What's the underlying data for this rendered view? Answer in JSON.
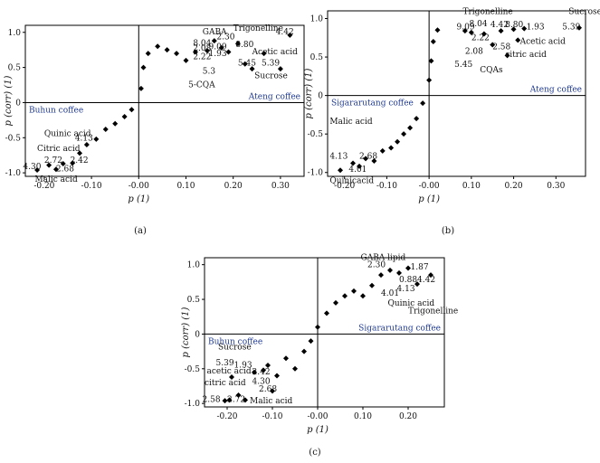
{
  "chart_data": [
    {
      "type": "scatter",
      "panel_label": "(a)",
      "xlabel": "p (1)",
      "ylabel": "p (corr) (1)",
      "xlim": [
        -0.24,
        0.35
      ],
      "ylim": [
        -1.05,
        1.1
      ],
      "xticks": [
        "-0.20",
        "-0.10",
        "-0.00",
        "0.10",
        "0.20",
        "0.30"
      ],
      "xtick_values": [
        -0.2,
        -0.1,
        0.0,
        0.1,
        0.2,
        0.3
      ],
      "yticks": [
        "1.0",
        "0.5",
        "0",
        "-0.5",
        "-1.0"
      ],
      "ytick_values": [
        1.0,
        0.5,
        0.0,
        -0.5,
        -1.0
      ],
      "quadrant_labels": {
        "left": "Buhun coffee",
        "right": "Ateng coffee"
      },
      "points": [
        [
          -0.215,
          -0.96
        ],
        [
          -0.19,
          -0.89
        ],
        [
          -0.175,
          -0.95
        ],
        [
          -0.16,
          -0.87
        ],
        [
          -0.14,
          -0.86
        ],
        [
          -0.125,
          -0.72
        ],
        [
          -0.11,
          -0.6
        ],
        [
          -0.09,
          -0.52
        ],
        [
          -0.07,
          -0.38
        ],
        [
          -0.05,
          -0.3
        ],
        [
          -0.03,
          -0.2
        ],
        [
          -0.015,
          -0.1
        ],
        [
          0.005,
          0.2
        ],
        [
          0.01,
          0.5
        ],
        [
          0.02,
          0.7
        ],
        [
          0.04,
          0.8
        ],
        [
          0.06,
          0.75
        ],
        [
          0.08,
          0.7
        ],
        [
          0.1,
          0.6
        ],
        [
          0.12,
          0.72
        ],
        [
          0.145,
          0.74
        ],
        [
          0.16,
          0.88
        ],
        [
          0.175,
          0.78
        ],
        [
          0.19,
          0.72
        ],
        [
          0.21,
          0.84
        ],
        [
          0.225,
          0.55
        ],
        [
          0.24,
          0.48
        ],
        [
          0.265,
          0.7
        ],
        [
          0.3,
          0.48
        ],
        [
          0.32,
          0.96
        ]
      ],
      "annotations": [
        {
          "text": "GABA",
          "x": 0.135,
          "y": 0.97
        },
        {
          "text": "Trigonelline",
          "x": 0.2,
          "y": 1.02
        },
        {
          "text": "2.30",
          "x": 0.165,
          "y": 0.9
        },
        {
          "text": "4.42",
          "x": 0.29,
          "y": 0.97
        },
        {
          "text": "8.04",
          "x": 0.115,
          "y": 0.81
        },
        {
          "text": "9.09",
          "x": 0.148,
          "y": 0.76
        },
        {
          "text": "8.80",
          "x": 0.205,
          "y": 0.79
        },
        {
          "text": "2.08",
          "x": 0.115,
          "y": 0.74
        },
        {
          "text": "1.93",
          "x": 0.148,
          "y": 0.66
        },
        {
          "text": "Acetic acid",
          "x": 0.24,
          "y": 0.69
        },
        {
          "text": "2.22",
          "x": 0.115,
          "y": 0.62
        },
        {
          "text": "5.45",
          "x": 0.21,
          "y": 0.53
        },
        {
          "text": "5.39",
          "x": 0.26,
          "y": 0.53
        },
        {
          "text": "5.3",
          "x": 0.135,
          "y": 0.41
        },
        {
          "text": "Sucrose",
          "x": 0.245,
          "y": 0.35
        },
        {
          "text": "5-CQA",
          "x": 0.105,
          "y": 0.22
        },
        {
          "text": "Quinic acid",
          "x": -0.2,
          "y": -0.48
        },
        {
          "text": "4.13",
          "x": -0.135,
          "y": -0.54
        },
        {
          "text": "Citric acid",
          "x": -0.215,
          "y": -0.69
        },
        {
          "text": "2.72",
          "x": -0.2,
          "y": -0.86
        },
        {
          "text": "2.42",
          "x": -0.145,
          "y": -0.86
        },
        {
          "text": "4.30",
          "x": -0.245,
          "y": -0.95
        },
        {
          "text": "2.68",
          "x": -0.175,
          "y": -0.98
        },
        {
          "text": "Malic acid",
          "x": -0.22,
          "y": -1.13
        }
      ]
    },
    {
      "type": "scatter",
      "panel_label": "(b)",
      "xlabel": "p (1)",
      "ylabel": "p (corr) (1)",
      "xlim": [
        -0.24,
        0.37
      ],
      "ylim": [
        -1.05,
        1.1
      ],
      "xticks": [
        "-0.20",
        "-0.10",
        "-0.00",
        "0.10",
        "0.20",
        "0.30"
      ],
      "xtick_values": [
        -0.2,
        -0.1,
        0.0,
        0.1,
        0.2,
        0.3
      ],
      "yticks": [
        "1.0",
        "0.5",
        "0",
        "-0.5",
        "-1.0"
      ],
      "ytick_values": [
        1.0,
        0.5,
        0.0,
        -0.5,
        -1.0
      ],
      "quadrant_labels": {
        "left": "Sigararutang coffee",
        "right": "Ateng coffee"
      },
      "points": [
        [
          -0.21,
          -0.97
        ],
        [
          -0.18,
          -0.88
        ],
        [
          -0.165,
          -0.92
        ],
        [
          -0.15,
          -0.82
        ],
        [
          -0.13,
          -0.85
        ],
        [
          -0.11,
          -0.72
        ],
        [
          -0.09,
          -0.68
        ],
        [
          -0.075,
          -0.6
        ],
        [
          -0.06,
          -0.5
        ],
        [
          -0.045,
          -0.42
        ],
        [
          -0.03,
          -0.3
        ],
        [
          -0.015,
          -0.1
        ],
        [
          0.0,
          0.2
        ],
        [
          0.005,
          0.45
        ],
        [
          0.01,
          0.7
        ],
        [
          0.02,
          0.85
        ],
        [
          0.085,
          0.84
        ],
        [
          0.1,
          0.82
        ],
        [
          0.13,
          0.8
        ],
        [
          0.15,
          0.66
        ],
        [
          0.17,
          0.84
        ],
        [
          0.185,
          0.52
        ],
        [
          0.2,
          0.86
        ],
        [
          0.21,
          0.72
        ],
        [
          0.225,
          0.87
        ],
        [
          0.355,
          0.88
        ]
      ],
      "annotations": [
        {
          "text": "Trigonelline",
          "x": 0.08,
          "y": 1.06
        },
        {
          "text": "Sucrose",
          "x": 0.33,
          "y": 1.06
        },
        {
          "text": "9.09",
          "x": 0.065,
          "y": 0.86
        },
        {
          "text": "8.04",
          "x": 0.095,
          "y": 0.9
        },
        {
          "text": "4.42",
          "x": 0.145,
          "y": 0.89
        },
        {
          "text": "8.80",
          "x": 0.18,
          "y": 0.89
        },
        {
          "text": "1.93",
          "x": 0.23,
          "y": 0.86
        },
        {
          "text": "5.39",
          "x": 0.315,
          "y": 0.86
        },
        {
          "text": "2.22",
          "x": 0.1,
          "y": 0.72
        },
        {
          "text": "2.58",
          "x": 0.15,
          "y": 0.6
        },
        {
          "text": "Acetic acid",
          "x": 0.215,
          "y": 0.67
        },
        {
          "text": "2.08",
          "x": 0.085,
          "y": 0.54
        },
        {
          "text": "citric acid",
          "x": 0.18,
          "y": 0.5
        },
        {
          "text": "5.45",
          "x": 0.06,
          "y": 0.37
        },
        {
          "text": "CQAs",
          "x": 0.12,
          "y": 0.3
        },
        {
          "text": "Malic acid",
          "x": -0.235,
          "y": -0.37
        },
        {
          "text": "4.13",
          "x": -0.235,
          "y": -0.82
        },
        {
          "text": "2.68",
          "x": -0.165,
          "y": -0.82
        },
        {
          "text": "4.01",
          "x": -0.19,
          "y": -0.99
        },
        {
          "text": "Quinicacid",
          "x": -0.235,
          "y": -1.14
        }
      ]
    },
    {
      "type": "scatter",
      "panel_label": "(c)",
      "xlabel": "p (1)",
      "ylabel": "p (corr) (1)",
      "xlim": [
        -0.25,
        0.28
      ],
      "ylim": [
        -1.05,
        1.1
      ],
      "xticks": [
        "-0.20",
        "-0.10",
        "-0.00",
        "0.10",
        "0.20"
      ],
      "xtick_values": [
        -0.2,
        -0.1,
        0.0,
        0.1,
        0.2
      ],
      "yticks": [
        "1.0",
        "0.5",
        "0",
        "-0.5",
        "-1.0"
      ],
      "ytick_values": [
        1.0,
        0.5,
        0.0,
        -0.5,
        -1.0
      ],
      "quadrant_labels": {
        "left": "Buhun coffee",
        "right": "Sigararutang coffee"
      },
      "points": [
        [
          -0.205,
          -0.96
        ],
        [
          -0.195,
          -0.95
        ],
        [
          -0.19,
          -0.62
        ],
        [
          -0.175,
          -0.88
        ],
        [
          -0.16,
          -0.95
        ],
        [
          -0.14,
          -0.55
        ],
        [
          -0.12,
          -0.52
        ],
        [
          -0.11,
          -0.45
        ],
        [
          -0.1,
          -0.82
        ],
        [
          -0.09,
          -0.6
        ],
        [
          -0.07,
          -0.35
        ],
        [
          -0.05,
          -0.5
        ],
        [
          -0.03,
          -0.25
        ],
        [
          -0.015,
          -0.1
        ],
        [
          0.0,
          0.1
        ],
        [
          0.02,
          0.3
        ],
        [
          0.04,
          0.45
        ],
        [
          0.06,
          0.55
        ],
        [
          0.08,
          0.62
        ],
        [
          0.1,
          0.55
        ],
        [
          0.12,
          0.7
        ],
        [
          0.14,
          0.85
        ],
        [
          0.16,
          0.92
        ],
        [
          0.18,
          0.88
        ],
        [
          0.2,
          0.95
        ],
        [
          0.22,
          0.72
        ],
        [
          0.25,
          0.85
        ]
      ],
      "annotations": [
        {
          "text": "GABA lipid",
          "x": 0.095,
          "y": 1.07
        },
        {
          "text": "2.30",
          "x": 0.11,
          "y": 0.96
        },
        {
          "text": "1.87",
          "x": 0.205,
          "y": 0.93
        },
        {
          "text": "0.88",
          "x": 0.18,
          "y": 0.75
        },
        {
          "text": "4.42",
          "x": 0.22,
          "y": 0.75
        },
        {
          "text": "4.01",
          "x": 0.14,
          "y": 0.55
        },
        {
          "text": "4.13",
          "x": 0.175,
          "y": 0.62
        },
        {
          "text": "Quinic acid",
          "x": 0.155,
          "y": 0.41
        },
        {
          "text": "Trigonelline",
          "x": 0.2,
          "y": 0.3
        },
        {
          "text": "Sucrose",
          "x": -0.22,
          "y": -0.22
        },
        {
          "text": "5.39",
          "x": -0.225,
          "y": -0.45
        },
        {
          "text": "1.93",
          "x": -0.185,
          "y": -0.48
        },
        {
          "text": "2.42",
          "x": -0.145,
          "y": -0.58
        },
        {
          "text": "acetic acid",
          "x": -0.245,
          "y": -0.57
        },
        {
          "text": "4.30",
          "x": -0.145,
          "y": -0.72
        },
        {
          "text": "citric acid",
          "x": -0.25,
          "y": -0.74
        },
        {
          "text": "2.68",
          "x": -0.13,
          "y": -0.83
        },
        {
          "text": "2.58",
          "x": -0.255,
          "y": -0.98
        },
        {
          "text": "2.72",
          "x": -0.2,
          "y": -0.98
        },
        {
          "text": "Malic acid",
          "x": -0.15,
          "y": -1.0
        }
      ]
    }
  ]
}
